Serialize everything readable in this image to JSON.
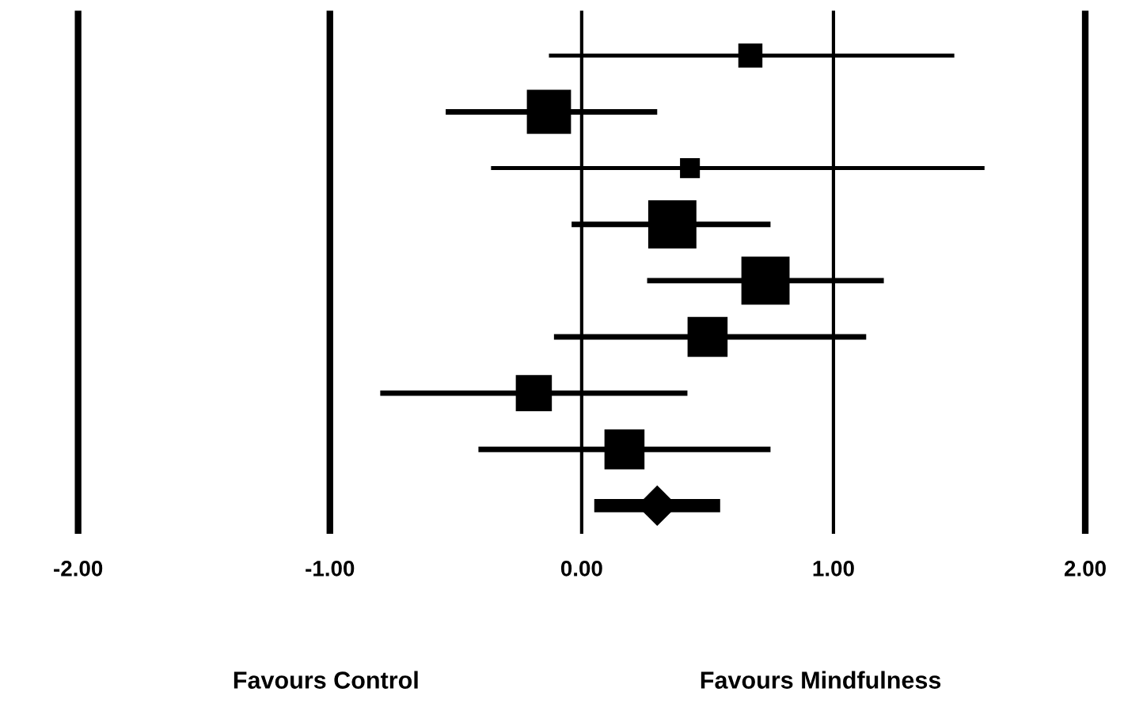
{
  "chart_data": {
    "type": "bubble",
    "orientation": "horizontal",
    "categories": [
      null,
      null,
      null,
      null,
      null,
      null,
      null,
      null,
      null
    ],
    "series": [
      {
        "color": "#000000",
        "marker": "square",
        "values": [
          0.67,
          -0.13,
          0.43,
          0.36,
          0.73,
          0.5,
          -0.19,
          0.17,
          null
        ],
        "sizes": [
          0.25,
          0.84,
          0.17,
          1,
          1,
          0.69,
          0.56,
          0.69,
          null
        ],
        "errors": [
          [
            -0.13,
            1.48
          ],
          [
            -0.54,
            0.3
          ],
          [
            -0.36,
            1.6
          ],
          [
            -0.04,
            0.75
          ],
          [
            0.26,
            1.2
          ],
          [
            -0.11,
            1.13
          ],
          [
            -0.8,
            0.42
          ],
          [
            -0.41,
            0.75
          ],
          null
        ]
      },
      {
        "color": "#000000",
        "marker": "diamond",
        "values": [
          null,
          null,
          null,
          null,
          null,
          null,
          null,
          null,
          0.3
        ],
        "errors": [
          null,
          null,
          null,
          null,
          null,
          null,
          null,
          null,
          [
            0.05,
            0.55
          ]
        ]
      }
    ],
    "xlim": [
      -2.02,
      2.02
    ],
    "xticks": [
      {
        "value": -2,
        "label": "-2.00"
      },
      {
        "value": -1,
        "label": "-1.00"
      },
      {
        "value": 0,
        "label": "0.00"
      },
      {
        "value": 1,
        "label": "1.00"
      },
      {
        "value": 2,
        "label": "2.00"
      }
    ],
    "grid": "x",
    "tick_labels": "x",
    "annotations": [
      "Favours Control",
      "Favours Mindfulness"
    ]
  }
}
